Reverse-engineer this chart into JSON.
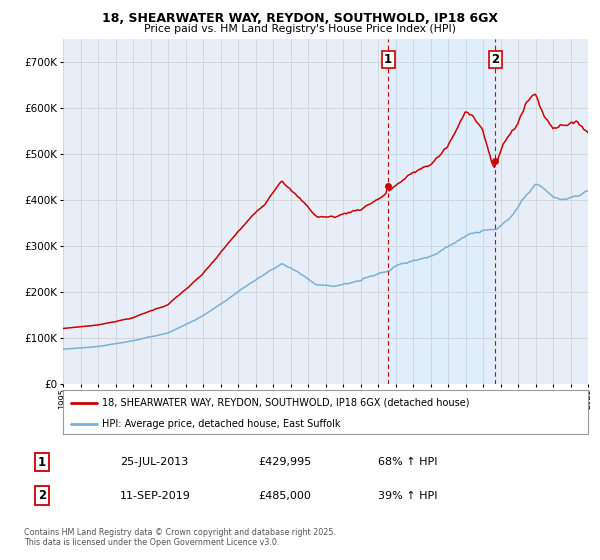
{
  "title_line1": "18, SHEARWATER WAY, REYDON, SOUTHWOLD, IP18 6GX",
  "title_line2": "Price paid vs. HM Land Registry's House Price Index (HPI)",
  "legend_label1": "18, SHEARWATER WAY, REYDON, SOUTHWOLD, IP18 6GX (detached house)",
  "legend_label2": "HPI: Average price, detached house, East Suffolk",
  "purchase1_date": "25-JUL-2013",
  "purchase1_price": "£429,995",
  "purchase1_hpi": "68% ↑ HPI",
  "purchase2_date": "11-SEP-2019",
  "purchase2_price": "£485,000",
  "purchase2_hpi": "39% ↑ HPI",
  "footnote": "Contains HM Land Registry data © Crown copyright and database right 2025.\nThis data is licensed under the Open Government Licence v3.0.",
  "ylim_min": 0,
  "ylim_max": 750000,
  "year_start": 1995,
  "year_end": 2025,
  "purchase1_year": 2013.58,
  "purchase2_year": 2019.7,
  "purchase1_price_val": 429995,
  "purchase2_price_val": 485000,
  "red_color": "#cc0000",
  "blue_color": "#7bafd4",
  "vline_color": "#cc0000",
  "shade_color": "#ddeeff",
  "bg_color": "#e8eef8",
  "plot_bg": "#ffffff",
  "grid_color": "#cccccc"
}
